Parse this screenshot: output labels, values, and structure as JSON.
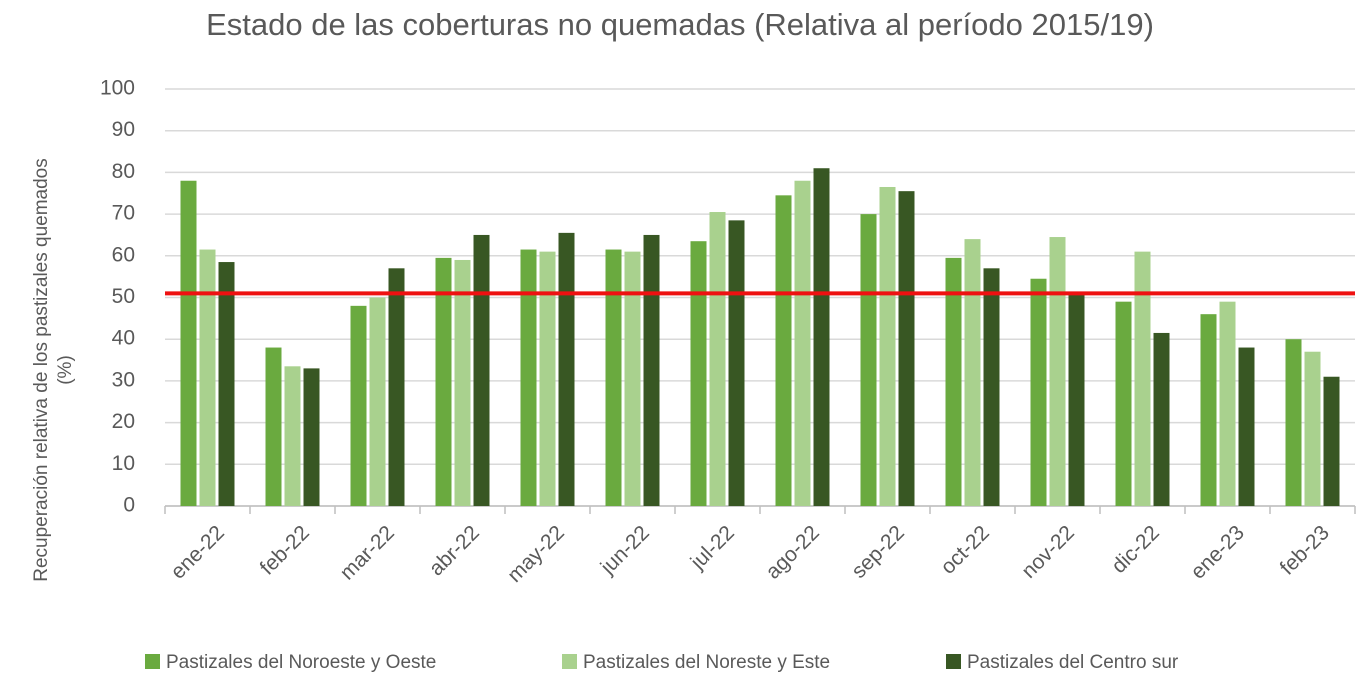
{
  "chart_data": {
    "type": "bar",
    "title": "Estado de las coberturas no quemadas (Relativa al período 2015/19)",
    "y_label": [
      "Recuperación relativa de los pastizales quemados",
      "(%)"
    ],
    "categories": [
      "ene-22",
      "feb-22",
      "mar-22",
      "abr-22",
      "may-22",
      "jun-22",
      "jul-22",
      "ago-22",
      "sep-22",
      "oct-22",
      "nov-22",
      "dic-22",
      "ene-23",
      "feb-23"
    ],
    "series": [
      {
        "name": "Pastizales del Noroeste y Oeste",
        "color": "#6aaa3f",
        "values": [
          78,
          38,
          48,
          59.5,
          61.5,
          61.5,
          63.5,
          74.5,
          70,
          59.5,
          54.5,
          49,
          46,
          40
        ]
      },
      {
        "name": "Pastizales del Noreste y Este",
        "color": "#a9d18e",
        "values": [
          61.5,
          33.5,
          50,
          59,
          61,
          61,
          70.5,
          78,
          76.5,
          64,
          64.5,
          61,
          49,
          37
        ]
      },
      {
        "name": "Pastizales del Centro sur",
        "color": "#385723",
        "values": [
          58.5,
          33,
          57,
          65,
          65.5,
          65,
          68.5,
          81,
          75.5,
          57,
          51,
          41.5,
          38,
          31
        ]
      }
    ],
    "reference_line": {
      "value": 51,
      "color": "#ee1111"
    },
    "ylim": [
      0,
      100
    ],
    "yticks": [
      0,
      10,
      20,
      30,
      40,
      50,
      60,
      70,
      80,
      90,
      100
    ],
    "grid": true
  }
}
